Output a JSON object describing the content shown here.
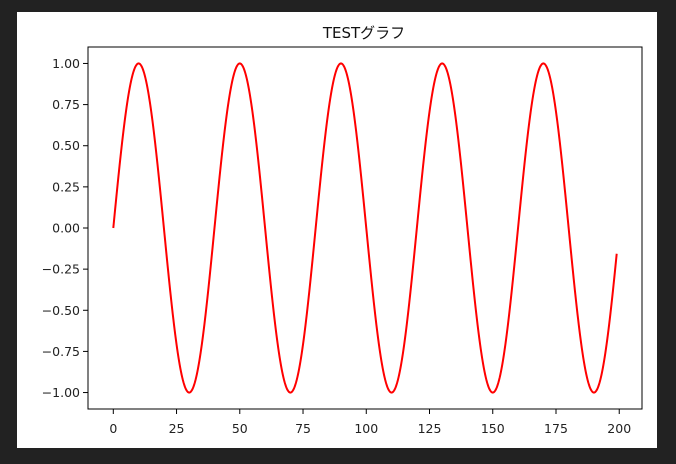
{
  "chart_data": {
    "type": "line",
    "title": "TESTグラフ",
    "xlabel": "",
    "ylabel": "",
    "xlim": [
      -10,
      209
    ],
    "ylim": [
      -1.1,
      1.1
    ],
    "xticks": [
      0,
      25,
      50,
      75,
      100,
      125,
      150,
      175,
      200
    ],
    "xtick_labels": [
      "0",
      "25",
      "50",
      "75",
      "100",
      "125",
      "150",
      "175",
      "200"
    ],
    "yticks": [
      1.0,
      0.75,
      0.5,
      0.25,
      0.0,
      -0.25,
      -0.5,
      -0.75,
      -1.0
    ],
    "ytick_labels": [
      "1.00",
      "0.75",
      "0.50",
      "0.25",
      "0.00",
      "−0.25",
      "−0.50",
      "−0.75",
      "−1.00"
    ],
    "grid": false,
    "series": [
      {
        "color": "#ff0000",
        "function": "y = sin(2*pi*x/40)",
        "x_range": [
          0,
          199
        ],
        "x_step": 1
      }
    ]
  }
}
